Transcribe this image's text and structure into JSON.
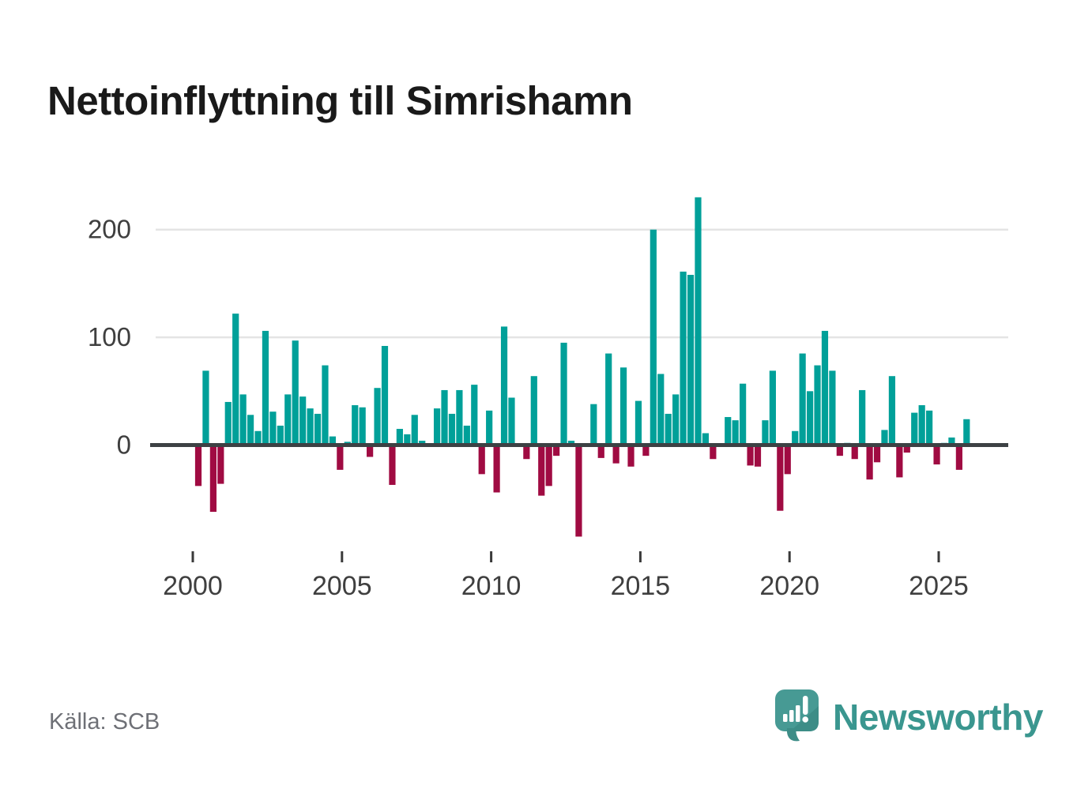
{
  "header": {
    "title": "Nettoinflyttning till Simrishamn"
  },
  "footer": {
    "source_label": "Källa: SCB",
    "brand": "Newsworthy"
  },
  "colors": {
    "positive_bar": "#00A099",
    "negative_bar": "#A00B42",
    "gridline": "#e4e4e4",
    "zero_axis": "#3d4144",
    "tick_mark": "#3a3a3a",
    "axis_text": "#3f3f3f",
    "title_text": "#1a1a1a",
    "source_text": "#6e7076",
    "brand_teal": "#3a968f",
    "logo_bg": "#479a94",
    "logo_bg_dark": "#3d8d87"
  },
  "chart_data": {
    "type": "bar",
    "title": "Nettoinflyttning till Simrishamn",
    "xlabel": "",
    "ylabel": "",
    "frequency": "quarterly",
    "grid": "horizontal",
    "y_ticks": [
      0,
      100,
      200
    ],
    "x_ticks": [
      2000,
      2005,
      2010,
      2015,
      2020,
      2025
    ],
    "ylim": [
      -95,
      245
    ],
    "legend": "none",
    "positive_color_meaning": "net in-migration",
    "negative_color_meaning": "net out-migration",
    "values_by_year": {
      "2000": [
        -38,
        69,
        -62,
        -36
      ],
      "2001": [
        40,
        122,
        47,
        28
      ],
      "2002": [
        13,
        106,
        31,
        18
      ],
      "2003": [
        47,
        97,
        45,
        34
      ],
      "2004": [
        29,
        74,
        8,
        -23
      ],
      "2005": [
        3,
        37,
        35,
        -11
      ],
      "2006": [
        53,
        92,
        -37,
        15
      ],
      "2007": [
        10,
        28,
        4,
        0
      ],
      "2008": [
        34,
        51,
        29,
        51
      ],
      "2009": [
        18,
        56,
        -27,
        32
      ],
      "2010": [
        -44,
        110,
        44,
        0
      ],
      "2011": [
        -13,
        64,
        -47,
        -38
      ],
      "2012": [
        -10,
        95,
        4,
        -85
      ],
      "2013": [
        0,
        38,
        -12,
        85
      ],
      "2014": [
        -17,
        72,
        -20,
        41
      ],
      "2015": [
        -10,
        200,
        66,
        29
      ],
      "2016": [
        47,
        161,
        158,
        230
      ],
      "2017": [
        11,
        -13,
        0,
        26
      ],
      "2018": [
        23,
        57,
        -19,
        -20
      ],
      "2019": [
        23,
        69,
        -61,
        -27
      ],
      "2020": [
        13,
        85,
        50,
        74
      ],
      "2021": [
        106,
        69,
        -10,
        2
      ],
      "2022": [
        -13,
        51,
        -32,
        -16
      ],
      "2023": [
        14,
        64,
        -30,
        -7
      ],
      "2024": [
        30,
        37,
        32,
        -18
      ],
      "2025": [
        2,
        7,
        -23,
        24
      ]
    }
  }
}
